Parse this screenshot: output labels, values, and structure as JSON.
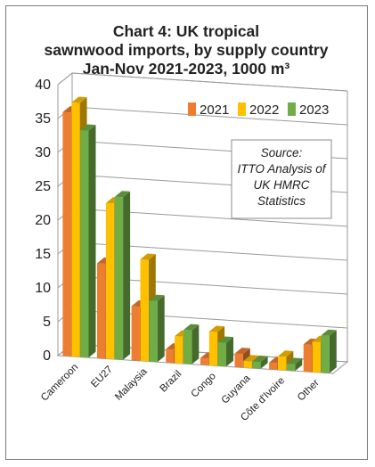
{
  "chart_data": {
    "type": "bar",
    "title_lines": [
      "Chart 4: UK tropical",
      "sawnwood imports, by supply country",
      "Jan-Nov 2021-2023, 1000 m³"
    ],
    "categories": [
      "Cameroon",
      "EU27",
      "Malaysia",
      "Brazil",
      "Congo",
      "Guyana",
      "Côte d'Ivoire",
      "Other"
    ],
    "series": [
      {
        "name": "2021",
        "color": "#ED7D31",
        "values": [
          36,
          14,
          8,
          2,
          1,
          2,
          1,
          4
        ]
      },
      {
        "name": "2022",
        "color": "#FFC000",
        "values": [
          37.5,
          23,
          15,
          4,
          5,
          1,
          2,
          4.5
        ]
      },
      {
        "name": "2023",
        "color": "#70AD47",
        "values": [
          33.5,
          24,
          9,
          5,
          3.5,
          1,
          1,
          5.5
        ]
      }
    ],
    "y_ticks": [
      "0",
      "5",
      "10",
      "15",
      "20",
      "25",
      "30",
      "35",
      "40"
    ],
    "ylim": [
      0,
      40
    ],
    "grid": true,
    "legend_position": "top-right",
    "annotation_lines": [
      "Source:",
      "ITTO Analysis of",
      "UK HMRC",
      "Statistics"
    ]
  }
}
